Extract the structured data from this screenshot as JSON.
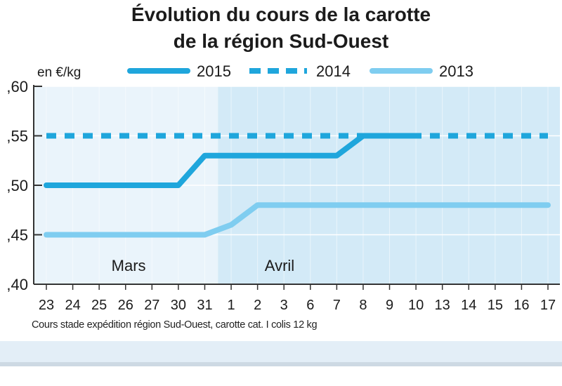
{
  "chart_data": {
    "type": "line",
    "title": [
      "Évolution du cours de la carotte",
      "de la région Sud-Ouest"
    ],
    "ylabel": "en €/kg",
    "ylim": [
      0.4,
      0.6
    ],
    "yticks": [
      ",40",
      ",45",
      ",50",
      ",55",
      ",60"
    ],
    "ytick_values": [
      0.4,
      0.45,
      0.5,
      0.55,
      0.6
    ],
    "categories": [
      "23",
      "24",
      "25",
      "26",
      "27",
      "30",
      "31",
      "1",
      "2",
      "3",
      "6",
      "7",
      "8",
      "9",
      "10",
      "13",
      "14",
      "15",
      "16",
      "17"
    ],
    "month_labels": [
      {
        "label": "Mars",
        "start": 0,
        "end": 6
      },
      {
        "label": "Avril",
        "start": 7,
        "end": 19
      }
    ],
    "legend_position": "top",
    "series": [
      {
        "name": "2015",
        "style": "solid",
        "color": "#1fa6dc",
        "values": [
          0.5,
          0.5,
          0.5,
          0.5,
          0.5,
          0.5,
          0.53,
          0.53,
          0.53,
          0.53,
          0.53,
          0.53,
          0.55,
          0.55,
          0.55,
          null,
          null,
          null,
          null,
          null
        ]
      },
      {
        "name": "2014",
        "style": "dashed",
        "color": "#1fa6dc",
        "values": [
          0.55,
          0.55,
          0.55,
          0.55,
          0.55,
          0.55,
          0.55,
          0.55,
          0.55,
          0.55,
          0.55,
          0.55,
          0.55,
          0.55,
          0.55,
          0.55,
          0.55,
          0.55,
          0.55,
          0.55
        ]
      },
      {
        "name": "2013",
        "style": "solid",
        "color": "#7fcdf0",
        "values": [
          0.45,
          0.45,
          0.45,
          0.45,
          0.45,
          0.45,
          0.45,
          0.46,
          0.48,
          0.48,
          0.48,
          0.48,
          0.48,
          0.48,
          0.48,
          0.48,
          0.48,
          0.48,
          0.48,
          0.48
        ]
      }
    ],
    "footnote": "Cours stade expédition région Sud-Ouest, carotte cat. I colis 12 kg",
    "grid": true
  }
}
